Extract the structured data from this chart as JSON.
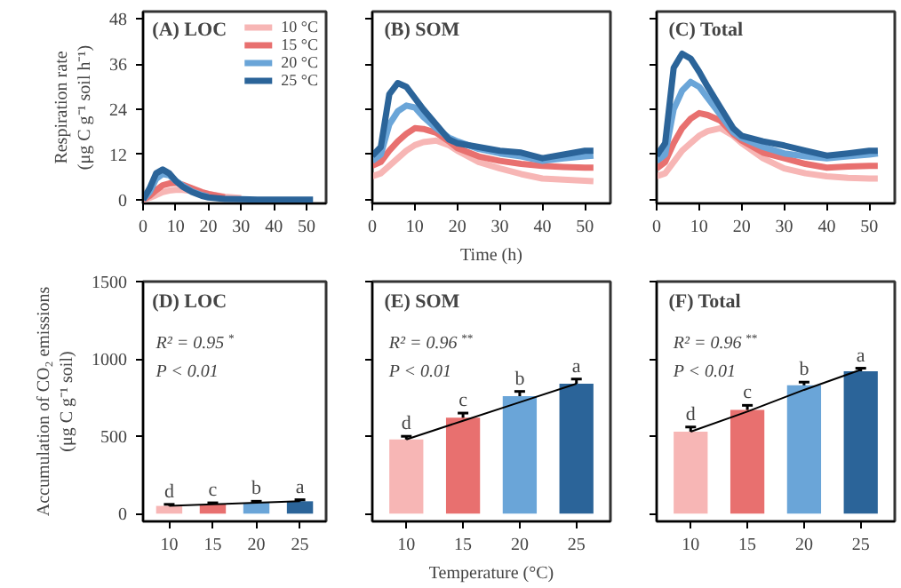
{
  "chart_data": [
    {
      "type": "line",
      "title": "(A) LOC",
      "ylabel": "Respiration rate\n(μg C g⁻¹ soil h⁻¹)",
      "xlim": [
        0,
        56
      ],
      "ylim": [
        -1,
        50
      ],
      "xticks": [
        0,
        10,
        20,
        30,
        40,
        50
      ],
      "yticks": [
        0,
        12,
        24,
        36,
        48
      ],
      "legend": "top right",
      "x": [
        0,
        2,
        4,
        6,
        8,
        10,
        12,
        15,
        18,
        20,
        25,
        30,
        35,
        40,
        45,
        50,
        52
      ],
      "series": [
        {
          "name": "10 °C",
          "color": "#f7b6b5",
          "values": [
            0,
            0.5,
            1.2,
            2,
            2.4,
            2.6,
            2.6,
            2.3,
            1.8,
            1.5,
            0.8,
            0.4,
            null,
            null,
            null,
            null,
            null
          ]
        },
        {
          "name": "15 °C",
          "color": "#e8706f",
          "values": [
            0,
            1,
            2.5,
            3.8,
            4.3,
            4.5,
            4,
            3,
            2,
            1.5,
            0.6,
            null,
            null,
            null,
            null,
            null,
            null
          ]
        },
        {
          "name": "20 °C",
          "color": "#6aa5d8",
          "values": [
            0,
            2,
            5.5,
            6.8,
            6.5,
            5,
            3.8,
            2.2,
            1.2,
            0.8,
            null,
            null,
            null,
            null,
            null,
            null,
            null
          ]
        },
        {
          "name": "25 °C",
          "color": "#2b6499",
          "values": [
            0,
            3,
            7,
            8,
            7,
            5,
            3.5,
            2,
            1,
            0.6,
            0.2,
            0.1,
            0,
            0,
            0,
            0,
            0
          ]
        }
      ]
    },
    {
      "type": "line",
      "title": "(B) SOM",
      "xlabel": "Time (h)",
      "xlim": [
        0,
        56
      ],
      "ylim": [
        -1,
        50
      ],
      "xticks": [
        0,
        10,
        20,
        30,
        40,
        50
      ],
      "yticks": [
        0,
        12,
        24,
        36,
        48
      ],
      "tick_labels": "x",
      "x": [
        0,
        2,
        4,
        6,
        8,
        10,
        12,
        15,
        18,
        20,
        25,
        30,
        35,
        40,
        45,
        50,
        52
      ],
      "series": [
        {
          "color": "#f7b6b5",
          "values": [
            6.2,
            7,
            9,
            11,
            13,
            14.5,
            15.3,
            15.7,
            14.5,
            13,
            10,
            8.3,
            6.8,
            5.6,
            5.3,
            5,
            4.9
          ]
        },
        {
          "color": "#e8706f",
          "values": [
            9,
            10,
            13,
            15.5,
            17.5,
            19,
            18.8,
            17.8,
            15.5,
            13.7,
            11.5,
            10.3,
            9.5,
            9,
            8.7,
            8.5,
            8.5
          ]
        },
        {
          "color": "#6aa5d8",
          "values": [
            10.3,
            12,
            20,
            23.5,
            25,
            24.5,
            22,
            19,
            16.5,
            15.5,
            13.5,
            12.3,
            11.5,
            10.3,
            11,
            11.5,
            11.7
          ]
        },
        {
          "color": "#2b6499",
          "values": [
            11.7,
            14,
            28,
            31,
            30,
            27,
            24,
            20,
            16,
            15,
            14,
            13,
            12.5,
            11,
            12,
            13,
            13
          ]
        }
      ]
    },
    {
      "type": "line",
      "title": "(C) Total",
      "xlim": [
        0,
        56
      ],
      "ylim": [
        -1,
        50
      ],
      "xticks": [
        0,
        10,
        20,
        30,
        40,
        50
      ],
      "yticks": [
        0,
        12,
        24,
        36,
        48
      ],
      "tick_labels": "x",
      "x": [
        0,
        2,
        4,
        6,
        8,
        10,
        12,
        15,
        18,
        20,
        25,
        30,
        35,
        40,
        45,
        50,
        52
      ],
      "series": [
        {
          "color": "#f7b6b5",
          "values": [
            6.2,
            7,
            10,
            13,
            15,
            17,
            18.2,
            19,
            17,
            15,
            11,
            8.3,
            7,
            6.2,
            5.8,
            5.6,
            5.6
          ]
        },
        {
          "color": "#e8706f",
          "values": [
            8.3,
            10,
            15,
            19,
            21.5,
            23,
            22.5,
            21,
            17.5,
            15.7,
            12.5,
            11,
            9.5,
            8.5,
            8.8,
            9,
            9
          ]
        },
        {
          "color": "#6aa5d8",
          "values": [
            10.3,
            12,
            24,
            29,
            31.3,
            30,
            27,
            22.5,
            18,
            16.4,
            14,
            12.3,
            11.5,
            11,
            11.5,
            12,
            12.3
          ]
        },
        {
          "color": "#2b6499",
          "values": [
            11.7,
            15,
            35,
            38.8,
            37.5,
            34,
            30,
            24.5,
            19,
            17,
            15.5,
            14.4,
            13,
            11.7,
            12.3,
            13,
            13
          ]
        }
      ]
    },
    {
      "type": "bar",
      "title": "(D) LOC",
      "ylabel": "Accumulation of CO₂ emissions\n(μg C g⁻¹ soil)",
      "categories": [
        "10",
        "15",
        "20",
        "25"
      ],
      "ylim": [
        -50,
        1500
      ],
      "yticks": [
        0,
        500,
        1000,
        1500
      ],
      "annotations": [
        "R² = 0.95$^{*}$",
        "P < 0.01",
        {
          "text": "d",
          "x": "10",
          "y": 60
        },
        {
          "text": "c",
          "x": "15",
          "y": 70
        },
        {
          "text": "b",
          "x": "20",
          "y": 80
        },
        {
          "text": "a",
          "x": "25",
          "y": 90
        }
      ],
      "series": [
        {
          "type": "bar",
          "colors": [
            "#f7b6b5",
            "#e8706f",
            "#6aa5d8",
            "#2b6499"
          ],
          "values": [
            50,
            60,
            70,
            80
          ],
          "errors": [
            10,
            10,
            10,
            10
          ]
        },
        {
          "type": "line",
          "color": "#000000",
          "values": [
            50,
            60,
            70,
            80
          ]
        }
      ]
    },
    {
      "type": "bar",
      "title": "(E) SOM",
      "xlabel": "Temperature (°C)",
      "categories": [
        "10",
        "15",
        "20",
        "25"
      ],
      "ylim": [
        -50,
        1500
      ],
      "yticks": [
        0,
        500,
        1000,
        1500
      ],
      "tick_labels": "x",
      "annotations": [
        "R² = 0.96$^{**}$",
        "P < 0.01",
        {
          "text": "d",
          "x": "10",
          "y": 500
        },
        {
          "text": "c",
          "x": "15",
          "y": 650
        },
        {
          "text": "b",
          "x": "20",
          "y": 790
        },
        {
          "text": "a",
          "x": "25",
          "y": 870
        }
      ],
      "series": [
        {
          "type": "bar",
          "colors": [
            "#f7b6b5",
            "#e8706f",
            "#6aa5d8",
            "#2b6499"
          ],
          "values": [
            480,
            620,
            760,
            840
          ],
          "errors": [
            20,
            30,
            30,
            30
          ]
        },
        {
          "type": "line",
          "color": "#000000",
          "values": [
            480,
            600,
            720,
            840
          ]
        }
      ]
    },
    {
      "type": "bar",
      "title": "(F) Total",
      "categories": [
        "10",
        "15",
        "20",
        "25"
      ],
      "ylim": [
        -50,
        1500
      ],
      "yticks": [
        0,
        500,
        1000,
        1500
      ],
      "tick_labels": "x",
      "annotations": [
        "R² = 0.96$^{**}$",
        "P < 0.01",
        {
          "text": "d",
          "x": "10",
          "y": 560
        },
        {
          "text": "c",
          "x": "15",
          "y": 700
        },
        {
          "text": "b",
          "x": "20",
          "y": 850
        },
        {
          "text": "a",
          "x": "25",
          "y": 940
        }
      ],
      "series": [
        {
          "type": "bar",
          "colors": [
            "#f7b6b5",
            "#e8706f",
            "#6aa5d8",
            "#2b6499"
          ],
          "values": [
            530,
            670,
            830,
            920
          ],
          "errors": [
            30,
            30,
            20,
            20
          ]
        },
        {
          "type": "line",
          "color": "#000000",
          "values": [
            530,
            660,
            800,
            930
          ]
        }
      ]
    }
  ]
}
